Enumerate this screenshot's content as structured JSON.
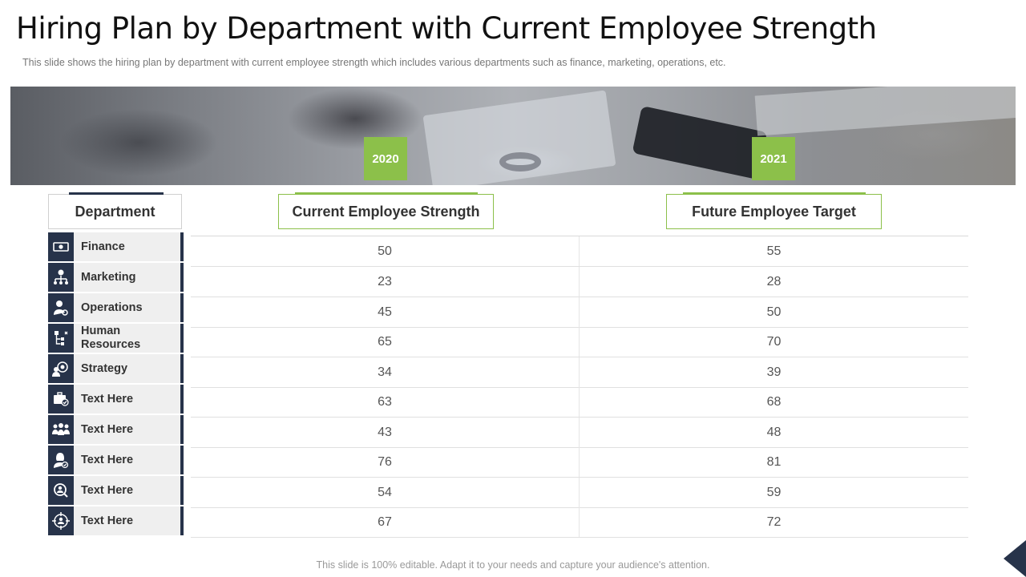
{
  "title": "Hiring Plan by Department with Current Employee Strength",
  "subtitle": "This slide shows the hiring plan by department with current employee strength which includes various  departments such as finance, marketing, operations, etc.",
  "years": {
    "current": "2020",
    "future": "2021"
  },
  "headers": {
    "department": "Department",
    "current": "Current Employee Strength",
    "future": "Future Employee Target"
  },
  "accent_colors": {
    "navy": "#27334a",
    "green": "#8cc04a"
  },
  "rows": [
    {
      "department": "Finance",
      "icon": "money-icon",
      "current": "50",
      "future": "55"
    },
    {
      "department": "Marketing",
      "icon": "org-gear-icon",
      "current": "23",
      "future": "28"
    },
    {
      "department": "Operations",
      "icon": "user-gear-icon",
      "current": "45",
      "future": "50"
    },
    {
      "department": "Human Resources",
      "icon": "org-chart-icon",
      "current": "65",
      "future": "70"
    },
    {
      "department": "Strategy",
      "icon": "target-users-icon",
      "current": "34",
      "future": "39"
    },
    {
      "department": "Text Here",
      "icon": "briefcase-check-icon",
      "current": "63",
      "future": "68"
    },
    {
      "department": "Text Here",
      "icon": "team-icon",
      "current": "43",
      "future": "48"
    },
    {
      "department": "Text Here",
      "icon": "woman-check-icon",
      "current": "76",
      "future": "81"
    },
    {
      "department": "Text Here",
      "icon": "search-user-icon",
      "current": "54",
      "future": "59"
    },
    {
      "department": "Text Here",
      "icon": "target-user-icon",
      "current": "67",
      "future": "72"
    }
  ],
  "footer": "This slide is 100% editable. Adapt it to your needs and capture your audience's attention."
}
